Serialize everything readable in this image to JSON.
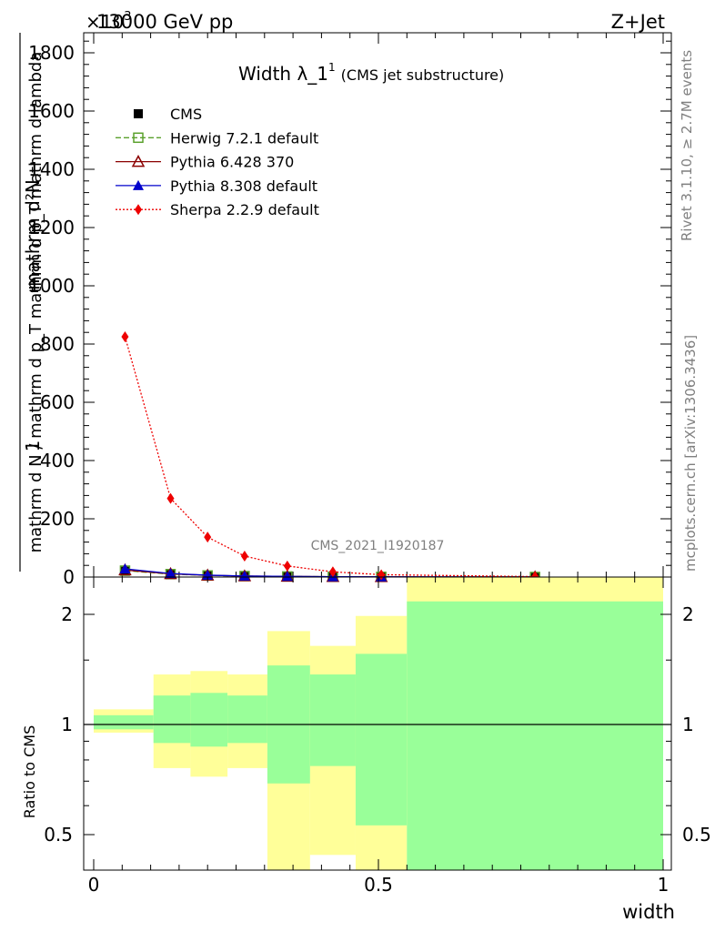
{
  "header": {
    "energy": "13000 GeV pp",
    "process": "Z+Jet",
    "multiplier": "×10",
    "multiplier_exp": "3"
  },
  "side": {
    "rivet": "Rivet 3.1.10, ≥ 2.7M events",
    "mcplots": "mcplots.cern.ch [arXiv:1306.3436]"
  },
  "chart_data": [
    {
      "type": "line",
      "title": "Width λ_1",
      "title_sup": "1",
      "subtitle": "(CMS jet substructure)",
      "watermark": "CMS_2021_I1920187",
      "ylabel_num": "1",
      "ylabel_den": "mathrm d N / mathrm d p_T mathrm d p_T mathrm d lambda",
      "ylabel_top": "mathrm d²N",
      "xlim": [
        0,
        1
      ],
      "ylim": [
        0,
        1850000
      ],
      "yticks": [
        0,
        200,
        400,
        600,
        800,
        1000,
        1200,
        1400,
        1600,
        1800
      ],
      "legend_position": "top-left",
      "series": [
        {
          "name": "CMS",
          "color": "#000000",
          "marker": "square",
          "x": [
            0.055,
            0.135,
            0.2,
            0.265,
            0.34,
            0.42,
            0.505,
            0.775
          ],
          "y": [
            20000,
            9000,
            5000,
            3000,
            1800,
            1000,
            600,
            150
          ]
        },
        {
          "name": "Herwig 7.2.1 default",
          "color": "#5aa02c",
          "marker": "open-square",
          "dash": "6,3",
          "x": [
            0.055,
            0.135,
            0.2,
            0.265,
            0.34,
            0.42,
            0.505,
            0.775
          ],
          "y": [
            22000,
            10000,
            5500,
            3200,
            2000,
            1100,
            650,
            160
          ]
        },
        {
          "name": "Pythia 6.428 370",
          "color": "#8b0000",
          "marker": "open-triangle",
          "x": [
            0.055,
            0.135,
            0.2,
            0.265,
            0.34,
            0.42,
            0.505,
            0.775
          ],
          "y": [
            24000,
            11000,
            6000,
            3400,
            2100,
            1200,
            700,
            170
          ]
        },
        {
          "name": "Pythia 8.308 default",
          "color": "#0000cc",
          "marker": "filled-triangle",
          "x": [
            0.055,
            0.135,
            0.2,
            0.265,
            0.34,
            0.42,
            0.505,
            0.775
          ],
          "y": [
            28000,
            12000,
            6500,
            3500,
            2200,
            1200,
            700,
            170
          ]
        },
        {
          "name": "Sherpa 2.2.9 default",
          "color": "#ee0000",
          "marker": "diamond",
          "dash": "2,2",
          "x": [
            0.055,
            0.135,
            0.2,
            0.265,
            0.34,
            0.42,
            0.505,
            0.775
          ],
          "y": [
            825000,
            270000,
            137000,
            72000,
            38000,
            18000,
            8000,
            1500
          ]
        }
      ]
    },
    {
      "type": "area",
      "ylabel": "Ratio to CMS",
      "xlabel": "width",
      "xlim": [
        0,
        1
      ],
      "ylim": [
        0.35,
        2.25
      ],
      "yticks": [
        "0.5",
        "1",
        "2"
      ],
      "xticks": [
        "0",
        "0.5",
        "1"
      ],
      "reference": 1,
      "bins": [
        {
          "x0": 0.0,
          "x1": 0.105,
          "outer": [
            0.95,
            1.1
          ],
          "inner": [
            0.97,
            1.06
          ]
        },
        {
          "x0": 0.105,
          "x1": 0.17,
          "outer": [
            0.76,
            1.37
          ],
          "inner": [
            0.89,
            1.2
          ]
        },
        {
          "x0": 0.17,
          "x1": 0.235,
          "outer": [
            0.72,
            1.4
          ],
          "inner": [
            0.87,
            1.22
          ]
        },
        {
          "x0": 0.235,
          "x1": 0.305,
          "outer": [
            0.76,
            1.37
          ],
          "inner": [
            0.89,
            1.2
          ]
        },
        {
          "x0": 0.305,
          "x1": 0.38,
          "outer": [
            0.3,
            1.8
          ],
          "inner": [
            0.69,
            1.45
          ]
        },
        {
          "x0": 0.38,
          "x1": 0.46,
          "outer": [
            0.3,
            1.64
          ],
          "inner": [
            0.77,
            1.37
          ]
        },
        {
          "x0": 0.46,
          "x1": 0.55,
          "outer": [
            0.3,
            1.98
          ],
          "inner": [
            0.53,
            1.56
          ]
        },
        {
          "x0": 0.55,
          "x1": 1.0,
          "outer": [
            0.3,
            2.6
          ],
          "inner": [
            0.3,
            2.17
          ]
        }
      ],
      "white_gap": {
        "x0": 0.38,
        "x1": 0.46,
        "ymax": 0.44
      }
    }
  ]
}
